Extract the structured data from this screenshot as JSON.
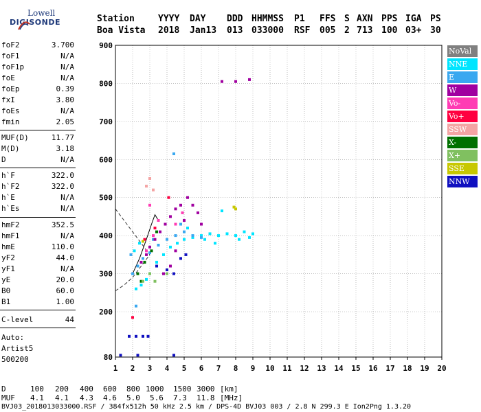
{
  "logo": {
    "top": "Lowell",
    "bottom": "DIGISONDE"
  },
  "header": {
    "labels": [
      "Station",
      "YYYY",
      "DAY",
      "DDD",
      "HHMMSS",
      "P1",
      "FFS",
      "S",
      "AXN",
      "PPS",
      "IGA",
      "PS"
    ],
    "values": [
      "Boa Vista",
      "2018",
      "Jan13",
      "013",
      "033000",
      "RSF",
      "005",
      "2",
      "713",
      "100",
      "03+",
      "30"
    ]
  },
  "params": [
    {
      "name": "foF2",
      "value": "3.700"
    },
    {
      "name": "foF1",
      "value": "N/A"
    },
    {
      "name": "foF1p",
      "value": "N/A"
    },
    {
      "name": "foE",
      "value": "N/A"
    },
    {
      "name": "foEp",
      "value": "0.39"
    },
    {
      "name": "fxI",
      "value": "3.80"
    },
    {
      "name": "foEs",
      "value": "N/A"
    },
    {
      "name": "fmin",
      "value": "2.05"
    },
    {
      "name": "MUF(D)",
      "value": "11.77"
    },
    {
      "name": "M(D)",
      "value": "3.18"
    },
    {
      "name": "D",
      "value": "N/A"
    },
    {
      "name": "h`F",
      "value": "322.0"
    },
    {
      "name": "h`F2",
      "value": "322.0"
    },
    {
      "name": "h`E",
      "value": "N/A"
    },
    {
      "name": "h`Es",
      "value": "N/A"
    },
    {
      "name": "hmF2",
      "value": "352.5"
    },
    {
      "name": "hmF1",
      "value": "N/A"
    },
    {
      "name": "hmE",
      "value": "110.0"
    },
    {
      "name": "yF2",
      "value": "44.0"
    },
    {
      "name": "yF1",
      "value": "N/A"
    },
    {
      "name": "yE",
      "value": "20.0"
    },
    {
      "name": "B0",
      "value": "60.0"
    },
    {
      "name": "B1",
      "value": "1.00"
    },
    {
      "name": "C-level",
      "value": "44"
    }
  ],
  "auto_notes": [
    "Auto:",
    "Artist5",
    "500200"
  ],
  "legend": [
    {
      "label": "NoVal",
      "color": "#808080"
    },
    {
      "label": "NNE",
      "color": "#00e5ff"
    },
    {
      "label": "E",
      "color": "#3aa8f0"
    },
    {
      "label": "W",
      "color": "#a000a0"
    },
    {
      "label": "Vo-",
      "color": "#ff3cb4"
    },
    {
      "label": "Vo+",
      "color": "#ff0040"
    },
    {
      "label": "SSW",
      "color": "#f4a4a4"
    },
    {
      "label": "X-",
      "color": "#007000"
    },
    {
      "label": "X+",
      "color": "#80c060"
    },
    {
      "label": "SSE",
      "color": "#c8c800"
    },
    {
      "label": "NNW",
      "color": "#1010c0"
    }
  ],
  "chart_data": {
    "type": "scatter",
    "x_ticks": [
      "1",
      "2",
      "3",
      "4",
      "5",
      "6",
      "7",
      "8",
      "9",
      "10",
      "11",
      "12",
      "13",
      "14",
      "15",
      "16",
      "17",
      "18",
      "19",
      "20"
    ],
    "y_ticks": [
      "80",
      "200",
      "300",
      "400",
      "500",
      "600",
      "700",
      "800",
      "900"
    ],
    "xlim": [
      1,
      20
    ],
    "ylim": [
      80,
      900
    ],
    "series": [
      {
        "name": "NNE",
        "color": "#00e5ff",
        "points": [
          [
            2.2,
            260
          ],
          [
            2.5,
            270
          ],
          [
            2.8,
            285
          ],
          [
            3.0,
            300
          ],
          [
            3.4,
            330
          ],
          [
            3.8,
            350
          ],
          [
            4.2,
            370
          ],
          [
            4.6,
            380
          ],
          [
            5.0,
            390
          ],
          [
            5.5,
            395
          ],
          [
            6.0,
            400
          ],
          [
            6.5,
            405
          ],
          [
            7.0,
            400
          ],
          [
            7.5,
            405
          ],
          [
            8.0,
            400
          ],
          [
            8.5,
            410
          ],
          [
            9.0,
            405
          ],
          [
            7.2,
            465
          ],
          [
            2.1,
            360
          ],
          [
            2.4,
            380
          ],
          [
            5.2,
            420
          ],
          [
            6.2,
            390
          ],
          [
            6.8,
            380
          ],
          [
            8.2,
            390
          ],
          [
            8.8,
            395
          ]
        ]
      },
      {
        "name": "E",
        "color": "#3aa8f0",
        "points": [
          [
            2.0,
            300
          ],
          [
            2.3,
            320
          ],
          [
            2.6,
            340
          ],
          [
            3.0,
            355
          ],
          [
            3.5,
            375
          ],
          [
            4.0,
            390
          ],
          [
            4.5,
            400
          ],
          [
            5.0,
            410
          ],
          [
            5.5,
            400
          ],
          [
            6.0,
            395
          ],
          [
            4.4,
            615
          ],
          [
            2.2,
            215
          ],
          [
            1.9,
            350
          ],
          [
            3.2,
            390
          ],
          [
            4.8,
            430
          ]
        ]
      },
      {
        "name": "W",
        "color": "#a000a0",
        "points": [
          [
            2.5,
            330
          ],
          [
            2.8,
            350
          ],
          [
            3.0,
            370
          ],
          [
            3.3,
            390
          ],
          [
            3.6,
            410
          ],
          [
            3.9,
            430
          ],
          [
            4.2,
            450
          ],
          [
            4.5,
            470
          ],
          [
            4.8,
            480
          ],
          [
            5.2,
            500
          ],
          [
            5.5,
            480
          ],
          [
            3.8,
            300
          ],
          [
            4.2,
            320
          ],
          [
            4.5,
            360
          ],
          [
            5.0,
            440
          ],
          [
            7.2,
            805
          ],
          [
            8.0,
            805
          ],
          [
            8.8,
            810
          ],
          [
            5.8,
            460
          ],
          [
            6.0,
            430
          ]
        ]
      },
      {
        "name": "Vo-",
        "color": "#ff3cb4",
        "points": [
          [
            2.8,
            360
          ],
          [
            3.2,
            400
          ],
          [
            3.5,
            440
          ],
          [
            3.0,
            480
          ],
          [
            4.5,
            430
          ],
          [
            4.9,
            460
          ]
        ]
      },
      {
        "name": "Vo+",
        "color": "#ff0040",
        "points": [
          [
            2.0,
            185
          ],
          [
            2.7,
            390
          ],
          [
            3.3,
            420
          ],
          [
            4.1,
            500
          ]
        ]
      },
      {
        "name": "SSW",
        "color": "#f4a4a4",
        "points": [
          [
            2.8,
            530
          ],
          [
            3.0,
            550
          ],
          [
            3.2,
            520
          ]
        ]
      },
      {
        "name": "X-",
        "color": "#007000",
        "points": [
          [
            2.3,
            300
          ],
          [
            2.7,
            330
          ],
          [
            3.1,
            360
          ],
          [
            3.4,
            410
          ],
          [
            2.5,
            280
          ]
        ]
      },
      {
        "name": "X+",
        "color": "#80c060",
        "points": [
          [
            2.6,
            280
          ],
          [
            3.0,
            300
          ],
          [
            3.3,
            280
          ],
          [
            4.0,
            300
          ]
        ]
      },
      {
        "name": "SSE",
        "color": "#c8c800",
        "points": [
          [
            8.0,
            470
          ],
          [
            7.9,
            475
          ],
          [
            2.6,
            385
          ]
        ]
      },
      {
        "name": "NNW",
        "color": "#1010c0",
        "points": [
          [
            1.8,
            135
          ],
          [
            2.2,
            135
          ],
          [
            2.6,
            135
          ],
          [
            2.9,
            135
          ],
          [
            3.4,
            320
          ],
          [
            4.0,
            310
          ],
          [
            4.4,
            300
          ],
          [
            4.8,
            340
          ],
          [
            5.1,
            350
          ],
          [
            1.3,
            85
          ],
          [
            2.3,
            85
          ],
          [
            4.4,
            85
          ]
        ]
      }
    ],
    "curves": [
      {
        "name": "",
        "style": "dashed",
        "points": [
          [
            1.0,
            470
          ],
          [
            1.5,
            440
          ],
          [
            2.0,
            410
          ],
          [
            2.5,
            380
          ],
          [
            3.0,
            350
          ]
        ]
      },
      {
        "name": "",
        "style": "dashed",
        "points": [
          [
            1.0,
            255
          ],
          [
            1.5,
            270
          ],
          [
            2.0,
            290
          ],
          [
            2.5,
            320
          ],
          [
            3.0,
            350
          ]
        ]
      },
      {
        "name": "",
        "style": "solid",
        "points": [
          [
            2.0,
            300
          ],
          [
            2.4,
            340
          ],
          [
            2.8,
            390
          ],
          [
            3.1,
            430
          ],
          [
            3.3,
            455
          ],
          [
            3.5,
            440
          ]
        ]
      }
    ]
  },
  "footer": {
    "d_label": "D",
    "d_values": [
      "100",
      "200",
      "400",
      "600",
      "800",
      "1000",
      "1500",
      "3000"
    ],
    "d_unit": "[km]",
    "muf_label": "MUF",
    "muf_values": [
      "4.1",
      "4.1",
      "4.3",
      "4.6",
      "5.0",
      "5.6",
      "7.3",
      "11.8"
    ],
    "muf_unit": "[MHz]",
    "file_line": "BVJ03_2018013033000.RSF / 384fx512h 50 kHz 2.5 km / DPS-4D BVJ03 003 / 2.8 N 299.3 E  Ion2Png 1.3.20"
  }
}
